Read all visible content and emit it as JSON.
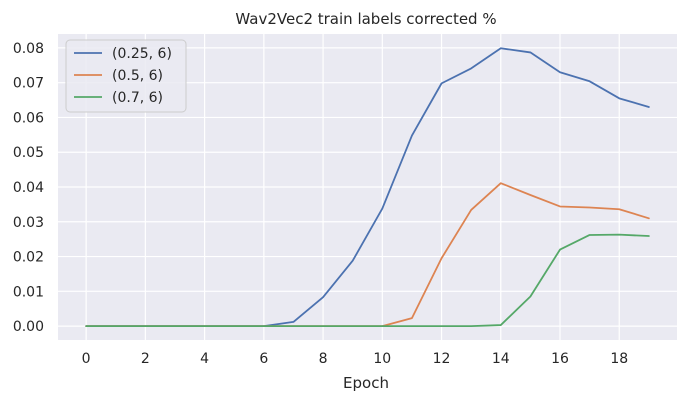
{
  "chart_data": {
    "type": "line",
    "title": "Wav2Vec2 train labels corrected %",
    "xlabel": "Epoch",
    "ylabel": "",
    "xlim": [
      -0.95,
      19.95
    ],
    "ylim": [
      -0.004,
      0.084
    ],
    "xticks": [
      0,
      2,
      4,
      6,
      8,
      10,
      12,
      14,
      16,
      18
    ],
    "xtick_labels": [
      "0",
      "2",
      "4",
      "6",
      "8",
      "10",
      "12",
      "14",
      "16",
      "18"
    ],
    "yticks": [
      0.0,
      0.01,
      0.02,
      0.03,
      0.04,
      0.05,
      0.06,
      0.07,
      0.08
    ],
    "ytick_labels": [
      "0.00",
      "0.01",
      "0.02",
      "0.03",
      "0.04",
      "0.05",
      "0.06",
      "0.07",
      "0.08"
    ],
    "grid": true,
    "legend_position": "top-left",
    "background_color": "#eaeaf2",
    "x": [
      0,
      1,
      2,
      3,
      4,
      5,
      6,
      7,
      8,
      9,
      10,
      11,
      12,
      13,
      14,
      15,
      16,
      17,
      18,
      19
    ],
    "series": [
      {
        "name": "(0.25, 6)",
        "color": "#4c72b0",
        "values": [
          0,
          0,
          0,
          0,
          0,
          0,
          0,
          0.0012,
          0.0083,
          0.0188,
          0.0338,
          0.0548,
          0.0698,
          0.0741,
          0.0799,
          0.0787,
          0.073,
          0.0704,
          0.0655,
          0.063
        ]
      },
      {
        "name": "(0.5, 6)",
        "color": "#dd8452",
        "values": [
          0,
          0,
          0,
          0,
          0,
          0,
          0,
          0,
          0,
          0,
          0,
          0.0023,
          0.0195,
          0.0334,
          0.0411,
          0.0377,
          0.0344,
          0.0341,
          0.0336,
          0.031
        ]
      },
      {
        "name": "(0.7, 6)",
        "color": "#55a868",
        "values": [
          0,
          0,
          0,
          0,
          0,
          0,
          0,
          0,
          0,
          0,
          0,
          0,
          0,
          0,
          0.0003,
          0.0085,
          0.022,
          0.0262,
          0.0263,
          0.0259
        ]
      }
    ]
  }
}
